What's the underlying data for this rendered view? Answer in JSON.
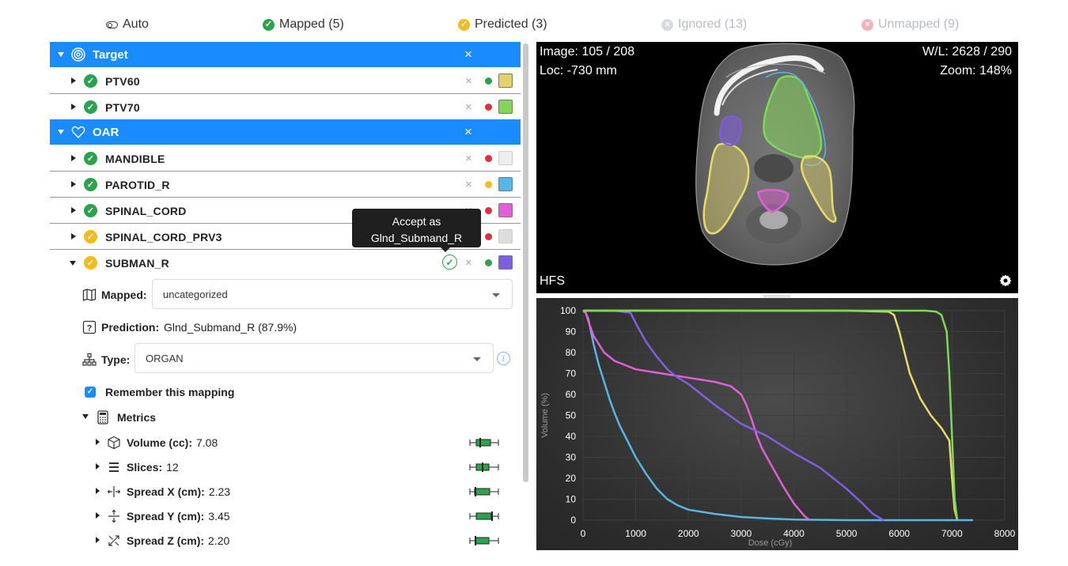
{
  "filters": {
    "auto": "Auto",
    "mapped": "Mapped (5)",
    "predicted": "Predicted (3)",
    "ignored": "Ignored (13)",
    "unmapped": "Unmapped (9)"
  },
  "groups": [
    {
      "label": "Target",
      "icon": "target-icon"
    },
    {
      "label": "OAR",
      "icon": "heart-icon"
    }
  ],
  "structures": [
    {
      "label": "PTV60",
      "status": "mapped",
      "dot": "#2ca24e",
      "swatch": "#e2d26a"
    },
    {
      "label": "PTV70",
      "status": "mapped",
      "dot": "#e0303c",
      "swatch": "#86d45a"
    },
    {
      "label": "MANDIBLE",
      "status": "mapped",
      "dot": "#e0303c",
      "swatch": "#eeeeee"
    },
    {
      "label": "PAROTID_R",
      "status": "mapped",
      "dot": "#f3bb1b",
      "swatch": "#56b7e6"
    },
    {
      "label": "SPINAL_CORD",
      "status": "mapped",
      "dot": "#e0303c",
      "swatch": "#e060d8"
    },
    {
      "label": "SPINAL_CORD_PRV3",
      "status": "predicted",
      "dot": "#e0303c",
      "swatch": "#dddddd"
    },
    {
      "label": "SUBMAN_R",
      "status": "predicted",
      "dot": "#2ca24e",
      "swatch": "#7e5ee0"
    }
  ],
  "tooltip": {
    "line1": "Accept as",
    "line2": "Glnd_Submand_R"
  },
  "details": {
    "mapped_label": "Mapped:",
    "mapped_value": "uncategorized",
    "prediction_label": "Prediction:",
    "prediction_value": "Glnd_Submand_R (87.9%)",
    "type_label": "Type:",
    "type_value": "ORGAN",
    "remember_label": "Remember this mapping",
    "metrics_label": "Metrics"
  },
  "metrics": [
    {
      "label": "Volume (cc):",
      "value": "7.08",
      "icon": "cube-icon"
    },
    {
      "label": "Slices:",
      "value": "12",
      "icon": "slices-icon"
    },
    {
      "label": "Spread X (cm):",
      "value": "2.23",
      "icon": "spread-x-icon"
    },
    {
      "label": "Spread Y (cm):",
      "value": "3.45",
      "icon": "spread-y-icon"
    },
    {
      "label": "Spread Z (cm):",
      "value": "2.20",
      "icon": "spread-z-icon"
    }
  ],
  "viewer": {
    "image": "Image: 105 / 208",
    "loc": "Loc: -730 mm",
    "wl": "W/L: 2628 / 290",
    "zoom": "Zoom: 148%",
    "orientation": "HFS"
  },
  "chart_data": {
    "type": "line",
    "title": "",
    "xlabel": "Dose (cGy)",
    "ylabel": "Volume (%)",
    "xlim": [
      0,
      8000
    ],
    "ylim": [
      0,
      100
    ],
    "xticks": [
      0,
      1000,
      2000,
      3000,
      4000,
      5000,
      6000,
      7000,
      8000
    ],
    "yticks": [
      0,
      10,
      20,
      30,
      40,
      50,
      60,
      70,
      80,
      90,
      100
    ],
    "grid": true,
    "series": [
      {
        "color": "#5ab4e6",
        "x": [
          0,
          50,
          100,
          150,
          200,
          300,
          400,
          500,
          600,
          700,
          800,
          900,
          1000,
          1200,
          1400,
          1600,
          1800,
          2000,
          2500,
          3000,
          3500,
          4000,
          5000,
          6000,
          7000,
          7400
        ],
        "y": [
          100,
          99,
          96,
          90,
          84,
          74,
          66,
          58,
          51,
          45,
          40,
          35,
          30,
          22,
          15,
          10,
          7,
          5,
          3,
          1.5,
          0.8,
          0.3,
          0,
          0,
          0,
          0
        ]
      },
      {
        "color": "#e060d8",
        "x": [
          0,
          50,
          100,
          200,
          300,
          400,
          600,
          800,
          1000,
          1500,
          2000,
          2500,
          2800,
          3000,
          3100,
          3200,
          3300,
          3400,
          3600,
          3800,
          4000,
          4200,
          4300
        ],
        "y": [
          100,
          99,
          95,
          88,
          84,
          80,
          76,
          74,
          72,
          70,
          68,
          66,
          64,
          60,
          55,
          48,
          40,
          34,
          25,
          16,
          8,
          2,
          0
        ]
      },
      {
        "color": "#8060e0",
        "x": [
          0,
          600,
          900,
          1000,
          1200,
          1400,
          1600,
          1800,
          2000,
          2500,
          3000,
          3500,
          4000,
          4500,
          5000,
          5300,
          5500,
          5700
        ],
        "y": [
          100,
          100,
          99,
          94,
          85,
          78,
          72,
          68,
          65,
          55,
          46,
          40,
          32,
          25,
          15,
          8,
          3,
          0
        ]
      },
      {
        "color": "#e6dc6a",
        "x": [
          0,
          5000,
          5800,
          5900,
          6000,
          6100,
          6200,
          6400,
          6600,
          6800,
          6950,
          7000,
          7050,
          7100
        ],
        "y": [
          100,
          100,
          99.5,
          98,
          90,
          80,
          70,
          58,
          50,
          44,
          38,
          20,
          5,
          0
        ]
      },
      {
        "color": "#7ed85a",
        "x": [
          0,
          6500,
          6700,
          6800,
          6900,
          6950,
          7000,
          7050,
          7100
        ],
        "y": [
          100,
          100,
          99.5,
          98,
          90,
          70,
          40,
          10,
          0
        ]
      }
    ]
  }
}
